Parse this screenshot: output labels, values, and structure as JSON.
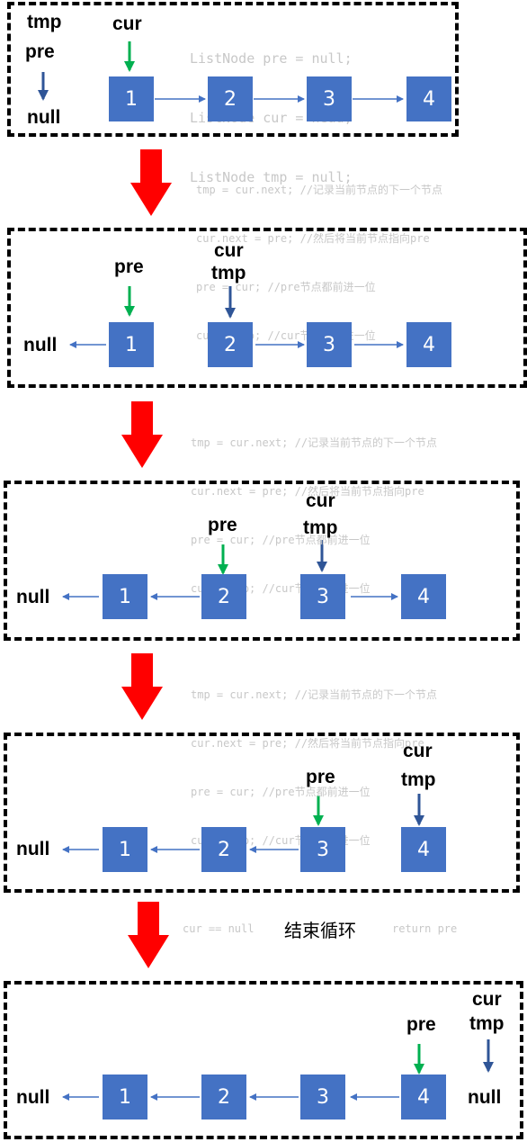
{
  "labels": {
    "tmp": "tmp",
    "pre": "pre",
    "cur": "cur",
    "null": "null"
  },
  "nodes": [
    "1",
    "2",
    "3",
    "4"
  ],
  "init_code": [
    "ListNode pre = null;",
    "ListNode cur = head;",
    "ListNode tmp = null;"
  ],
  "loop_code": [
    "tmp = cur.next; //记录当前节点的下一个节点",
    "cur.next = pre; //然后将当前节点指向pre",
    "pre = cur; //pre节点都前进一位",
    "cur = tmp; //cur节点都前进一位"
  ],
  "end": {
    "condition": "cur == null",
    "text": "结束循环",
    "return": "return pre"
  },
  "colors": {
    "node": "#4472c4",
    "pre_arrow": "#00b050",
    "cur_arrow": "#2f5597",
    "transition_arrow": "#ff0000",
    "code": "#c8c8c8"
  }
}
